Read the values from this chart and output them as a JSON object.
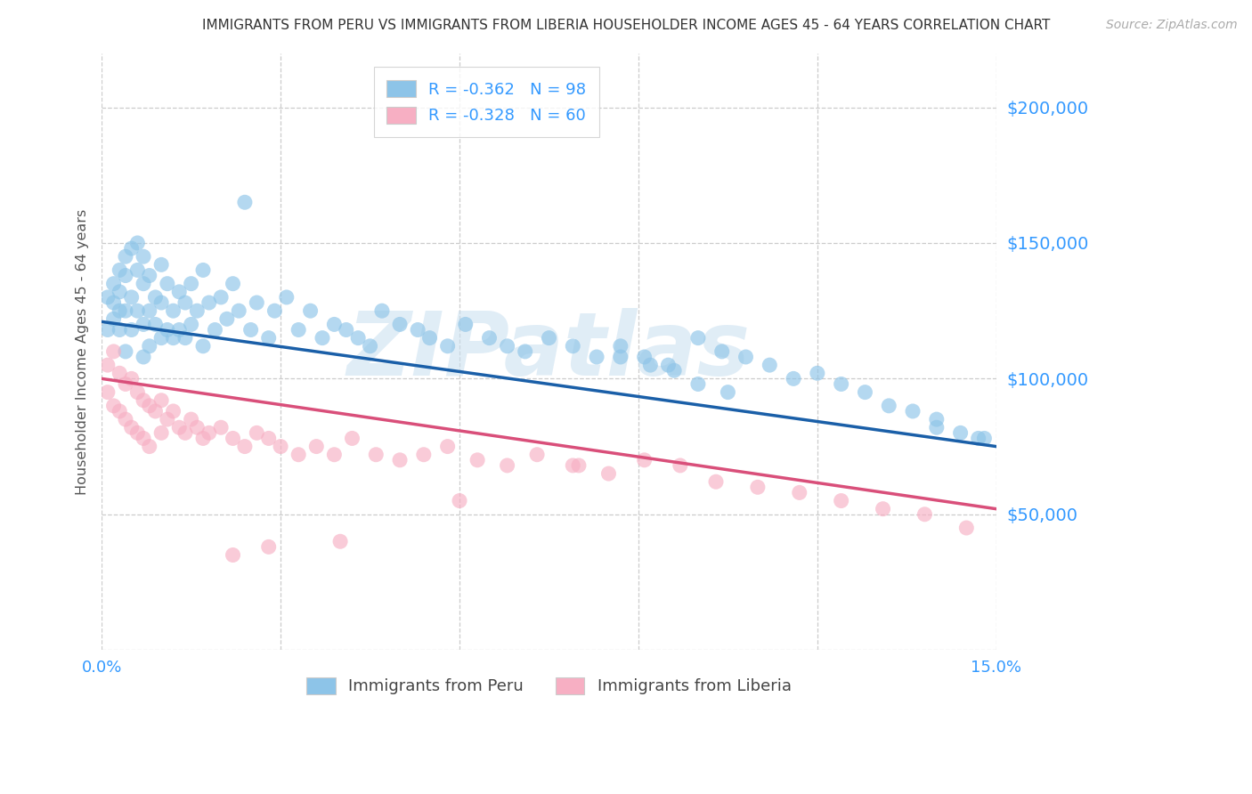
{
  "title": "IMMIGRANTS FROM PERU VS IMMIGRANTS FROM LIBERIA HOUSEHOLDER INCOME AGES 45 - 64 YEARS CORRELATION CHART",
  "source": "Source: ZipAtlas.com",
  "ylabel": "Householder Income Ages 45 - 64 years",
  "xlim": [
    0.0,
    0.15
  ],
  "ylim": [
    0,
    220000
  ],
  "yticks": [
    50000,
    100000,
    150000,
    200000
  ],
  "ytick_labels": [
    "$50,000",
    "$100,000",
    "$150,000",
    "$200,000"
  ],
  "xticks": [
    0.0,
    0.03,
    0.06,
    0.09,
    0.12,
    0.15
  ],
  "xtick_labels": [
    "0.0%",
    "",
    "",
    "",
    "",
    "15.0%"
  ],
  "peru_color": "#8dc4e8",
  "peru_edge_color": "#8dc4e8",
  "peru_line_color": "#1a5fa8",
  "liberia_color": "#f7afc3",
  "liberia_edge_color": "#f7afc3",
  "liberia_line_color": "#d94f7a",
  "peru_R": -0.362,
  "peru_N": 98,
  "liberia_R": -0.328,
  "liberia_N": 60,
  "peru_line_x0": 0.0,
  "peru_line_y0": 121000,
  "peru_line_x1": 0.15,
  "peru_line_y1": 75000,
  "liberia_line_x0": 0.0,
  "liberia_line_y0": 100000,
  "liberia_line_x1": 0.15,
  "liberia_line_y1": 52000,
  "watermark": "ZIPatlas",
  "background_color": "#ffffff",
  "grid_color": "#cccccc",
  "title_color": "#333333",
  "tick_color": "#3399ff",
  "source_color": "#aaaaaa",
  "ylabel_color": "#555555",
  "peru_scatter_x": [
    0.001,
    0.001,
    0.002,
    0.002,
    0.002,
    0.003,
    0.003,
    0.003,
    0.003,
    0.004,
    0.004,
    0.004,
    0.004,
    0.005,
    0.005,
    0.005,
    0.006,
    0.006,
    0.006,
    0.007,
    0.007,
    0.007,
    0.007,
    0.008,
    0.008,
    0.008,
    0.009,
    0.009,
    0.01,
    0.01,
    0.01,
    0.011,
    0.011,
    0.012,
    0.012,
    0.013,
    0.013,
    0.014,
    0.014,
    0.015,
    0.015,
    0.016,
    0.017,
    0.017,
    0.018,
    0.019,
    0.02,
    0.021,
    0.022,
    0.023,
    0.024,
    0.025,
    0.026,
    0.028,
    0.029,
    0.031,
    0.033,
    0.035,
    0.037,
    0.039,
    0.041,
    0.043,
    0.045,
    0.047,
    0.05,
    0.053,
    0.055,
    0.058,
    0.061,
    0.065,
    0.068,
    0.071,
    0.075,
    0.079,
    0.083,
    0.087,
    0.091,
    0.095,
    0.1,
    0.104,
    0.108,
    0.112,
    0.116,
    0.12,
    0.124,
    0.128,
    0.132,
    0.136,
    0.14,
    0.144,
    0.148,
    0.087,
    0.092,
    0.096,
    0.1,
    0.105,
    0.14,
    0.147
  ],
  "peru_scatter_y": [
    130000,
    118000,
    128000,
    122000,
    135000,
    125000,
    140000,
    132000,
    118000,
    145000,
    138000,
    125000,
    110000,
    148000,
    130000,
    118000,
    150000,
    140000,
    125000,
    145000,
    135000,
    120000,
    108000,
    138000,
    125000,
    112000,
    130000,
    120000,
    142000,
    128000,
    115000,
    135000,
    118000,
    125000,
    115000,
    132000,
    118000,
    128000,
    115000,
    135000,
    120000,
    125000,
    140000,
    112000,
    128000,
    118000,
    130000,
    122000,
    135000,
    125000,
    165000,
    118000,
    128000,
    115000,
    125000,
    130000,
    118000,
    125000,
    115000,
    120000,
    118000,
    115000,
    112000,
    125000,
    120000,
    118000,
    115000,
    112000,
    120000,
    115000,
    112000,
    110000,
    115000,
    112000,
    108000,
    112000,
    108000,
    105000,
    115000,
    110000,
    108000,
    105000,
    100000,
    102000,
    98000,
    95000,
    90000,
    88000,
    85000,
    80000,
    78000,
    108000,
    105000,
    103000,
    98000,
    95000,
    82000,
    78000
  ],
  "liberia_scatter_x": [
    0.001,
    0.001,
    0.002,
    0.002,
    0.003,
    0.003,
    0.004,
    0.004,
    0.005,
    0.005,
    0.006,
    0.006,
    0.007,
    0.007,
    0.008,
    0.008,
    0.009,
    0.01,
    0.01,
    0.011,
    0.012,
    0.013,
    0.014,
    0.015,
    0.016,
    0.017,
    0.018,
    0.02,
    0.022,
    0.024,
    0.026,
    0.028,
    0.03,
    0.033,
    0.036,
    0.039,
    0.042,
    0.046,
    0.05,
    0.054,
    0.058,
    0.063,
    0.068,
    0.073,
    0.079,
    0.085,
    0.091,
    0.097,
    0.103,
    0.11,
    0.117,
    0.124,
    0.131,
    0.138,
    0.145,
    0.022,
    0.028,
    0.04,
    0.06,
    0.08
  ],
  "liberia_scatter_y": [
    105000,
    95000,
    110000,
    90000,
    102000,
    88000,
    98000,
    85000,
    100000,
    82000,
    95000,
    80000,
    92000,
    78000,
    90000,
    75000,
    88000,
    92000,
    80000,
    85000,
    88000,
    82000,
    80000,
    85000,
    82000,
    78000,
    80000,
    82000,
    78000,
    75000,
    80000,
    78000,
    75000,
    72000,
    75000,
    72000,
    78000,
    72000,
    70000,
    72000,
    75000,
    70000,
    68000,
    72000,
    68000,
    65000,
    70000,
    68000,
    62000,
    60000,
    58000,
    55000,
    52000,
    50000,
    45000,
    35000,
    38000,
    40000,
    55000,
    68000
  ]
}
